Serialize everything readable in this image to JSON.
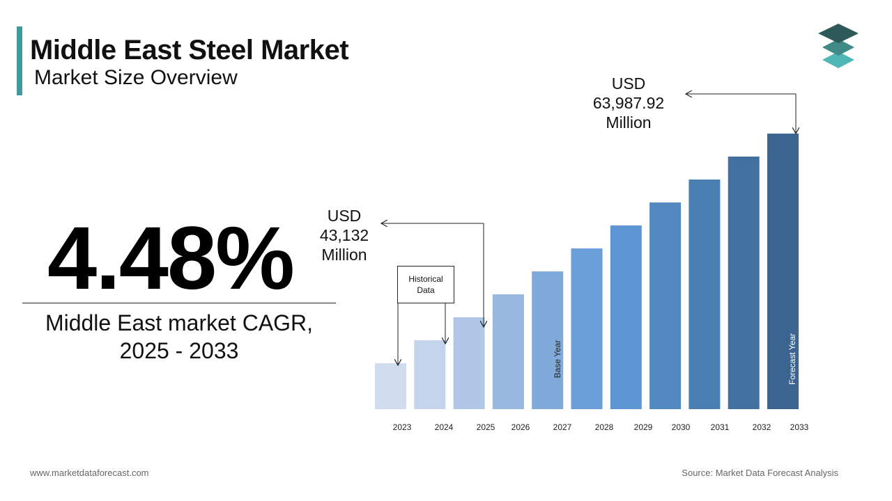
{
  "header": {
    "title": "Middle East Steel Market",
    "subtitle": "Market Size Overview"
  },
  "cagr": {
    "value": "4.48%",
    "label_line1": "Middle East market CAGR,",
    "label_line2": "2025 - 2033"
  },
  "annotations": {
    "end_value": {
      "line1": "USD",
      "line2": "63,987.92",
      "line3": "Million"
    },
    "start_value": {
      "line1": "USD",
      "line2": "43,132",
      "line3": "Million"
    },
    "historical_box": {
      "line1": "Historical",
      "line2": "Data"
    },
    "base_year_label": "Base Year",
    "forecast_year_label": "Forecast Year"
  },
  "footer": {
    "website": "www.marketdataforecast.com",
    "source": "Source: Market Data Forecast Analysis"
  },
  "colors": {
    "accent": "#3b9a9a",
    "logo_top": "#2d5a58",
    "logo_mid": "#3f8a86",
    "logo_bottom": "#4fb8b4"
  },
  "chart_data": {
    "type": "bar",
    "categories": [
      "2023",
      "2024",
      "2025",
      "2026",
      "2027",
      "2028",
      "2029",
      "2030",
      "2031",
      "2032",
      "2033"
    ],
    "values": [
      20,
      30,
      40,
      50,
      60,
      70,
      80,
      90,
      100,
      110,
      120
    ],
    "bar_colors": [
      "#d1dcee",
      "#c3d4ec",
      "#b0c8e6",
      "#98b8e0",
      "#7faad9",
      "#6a9fd9",
      "#5e96d4",
      "#5289c0",
      "#4a7fb1",
      "#42709f",
      "#3b6590"
    ],
    "ylim": [
      0,
      120
    ],
    "grid": false,
    "legend": "none"
  }
}
